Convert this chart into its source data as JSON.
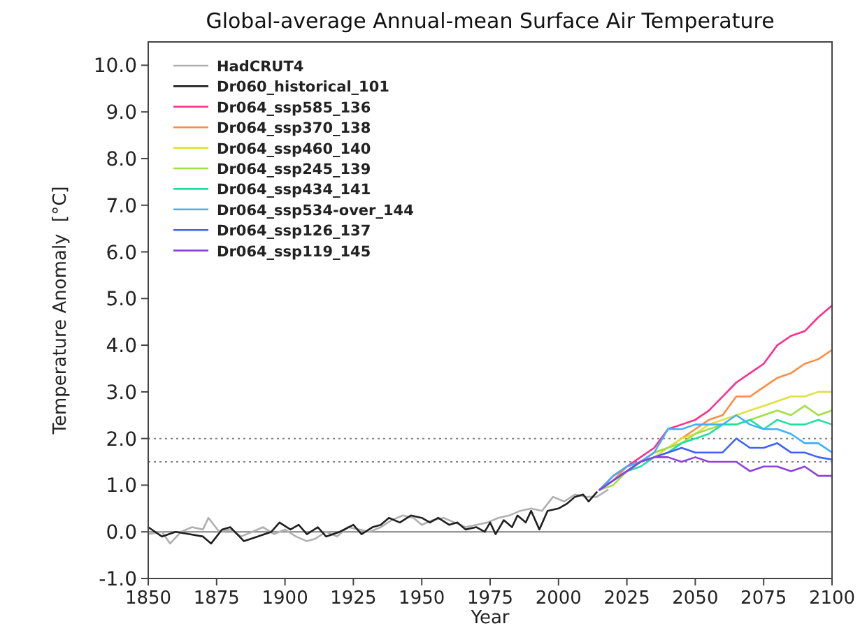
{
  "chart_data": {
    "type": "line",
    "title": "Global-average Annual-mean Surface Air Temperature",
    "xlabel": "Year",
    "ylabel": "Temperature Anomaly  [°C]",
    "xlim": [
      1850,
      2100
    ],
    "xticks": [
      1850,
      1875,
      1900,
      1925,
      1950,
      1975,
      2000,
      2025,
      2050,
      2075,
      2100
    ],
    "ylim": [
      -1,
      10.5
    ],
    "yticks": [
      {
        "value": -1,
        "label": "-1.0"
      },
      {
        "value": 0,
        "label": "0.0"
      },
      {
        "value": 1,
        "label": "1.0"
      },
      {
        "value": 2,
        "label": "2.0"
      },
      {
        "value": 3,
        "label": "3.0"
      },
      {
        "value": 4,
        "label": "4.0"
      },
      {
        "value": 5,
        "label": "5.0"
      },
      {
        "value": 6,
        "label": "6.0"
      },
      {
        "value": 7,
        "label": "7.0"
      },
      {
        "value": 8,
        "label": "8.0"
      },
      {
        "value": 9,
        "label": "9.0"
      },
      {
        "value": 10,
        "label": "10.0"
      }
    ],
    "grid": false,
    "legend": "top left",
    "line_style": "solid",
    "ref_lines": [
      {
        "axis": "y",
        "value": 0,
        "color": "#808080",
        "line_style": "solid"
      },
      {
        "axis": "y",
        "value": 2,
        "color": "#808080",
        "line_style": "dotted"
      },
      {
        "axis": "y",
        "value": 1.5,
        "color": "#808080",
        "line_style": "dotted"
      }
    ],
    "series": [
      {
        "name": "HadCRUT4",
        "color": "#b0b0b0",
        "x": [
          1850,
          1855,
          1858,
          1862,
          1866,
          1870,
          1872,
          1876,
          1880,
          1884,
          1888,
          1892,
          1896,
          1900,
          1904,
          1908,
          1911,
          1915,
          1919,
          1923,
          1927,
          1931,
          1935,
          1939,
          1943,
          1947,
          1950,
          1954,
          1958,
          1962,
          1966,
          1970,
          1974,
          1978,
          1982,
          1986,
          1990,
          1994,
          1998,
          2002,
          2006,
          2010,
          2014,
          2018
        ],
        "values": [
          -0.05,
          0.0,
          -0.25,
          0.0,
          0.1,
          0.05,
          0.3,
          0.0,
          0.05,
          -0.1,
          0.0,
          0.1,
          -0.05,
          0.05,
          -0.1,
          -0.2,
          -0.15,
          0.0,
          -0.1,
          0.1,
          0.05,
          0.0,
          0.1,
          0.25,
          0.35,
          0.3,
          0.15,
          0.25,
          0.3,
          0.2,
          0.1,
          0.15,
          0.2,
          0.3,
          0.35,
          0.45,
          0.5,
          0.45,
          0.75,
          0.65,
          0.8,
          0.75,
          0.75,
          0.9
        ]
      },
      {
        "name": "Dr060_historical_101",
        "color": "#202020",
        "x": [
          1850,
          1855,
          1860,
          1865,
          1870,
          1873,
          1877,
          1880,
          1885,
          1890,
          1895,
          1898,
          1902,
          1905,
          1908,
          1912,
          1915,
          1920,
          1925,
          1928,
          1932,
          1935,
          1938,
          1942,
          1946,
          1950,
          1953,
          1956,
          1960,
          1963,
          1966,
          1970,
          1973,
          1975,
          1977,
          1980,
          1983,
          1985,
          1988,
          1990,
          1993,
          1996,
          2000,
          2003,
          2006,
          2009,
          2011,
          2014
        ],
        "values": [
          0.1,
          -0.1,
          0.0,
          -0.05,
          -0.1,
          -0.25,
          0.05,
          0.1,
          -0.2,
          -0.1,
          0.0,
          0.2,
          0.05,
          0.15,
          -0.05,
          0.1,
          -0.1,
          0.0,
          0.15,
          -0.05,
          0.1,
          0.15,
          0.3,
          0.2,
          0.35,
          0.3,
          0.2,
          0.3,
          0.15,
          0.2,
          0.05,
          0.1,
          0.0,
          0.2,
          -0.05,
          0.25,
          0.1,
          0.35,
          0.2,
          0.45,
          0.05,
          0.45,
          0.5,
          0.6,
          0.75,
          0.8,
          0.65,
          0.85
        ]
      },
      {
        "name": "Dr064_ssp585_136",
        "color": "#ff2d8c",
        "x": [
          2015,
          2020,
          2025,
          2030,
          2035,
          2040,
          2045,
          2050,
          2055,
          2060,
          2065,
          2070,
          2075,
          2080,
          2085,
          2090,
          2095,
          2100
        ],
        "values": [
          0.9,
          1.2,
          1.4,
          1.6,
          1.8,
          2.2,
          2.3,
          2.4,
          2.6,
          2.9,
          3.2,
          3.4,
          3.6,
          4.0,
          4.2,
          4.3,
          4.6,
          4.85
        ]
      },
      {
        "name": "Dr064_ssp370_138",
        "color": "#ff8c40",
        "x": [
          2015,
          2020,
          2025,
          2030,
          2035,
          2040,
          2045,
          2050,
          2055,
          2060,
          2065,
          2070,
          2075,
          2080,
          2085,
          2090,
          2095,
          2100
        ],
        "values": [
          0.9,
          1.1,
          1.4,
          1.5,
          1.7,
          1.8,
          2.0,
          2.2,
          2.4,
          2.5,
          2.9,
          2.9,
          3.1,
          3.3,
          3.4,
          3.6,
          3.7,
          3.9
        ]
      },
      {
        "name": "Dr064_ssp460_140",
        "color": "#e0e040",
        "x": [
          2015,
          2020,
          2025,
          2030,
          2035,
          2040,
          2045,
          2050,
          2055,
          2060,
          2065,
          2070,
          2075,
          2080,
          2085,
          2090,
          2095,
          2100
        ],
        "values": [
          0.9,
          1.1,
          1.3,
          1.5,
          1.6,
          1.8,
          2.0,
          2.1,
          2.3,
          2.4,
          2.5,
          2.6,
          2.7,
          2.8,
          2.9,
          2.9,
          3.0,
          3.0
        ]
      },
      {
        "name": "Dr064_ssp245_139",
        "color": "#a0e040",
        "x": [
          2015,
          2020,
          2025,
          2030,
          2035,
          2040,
          2045,
          2050,
          2055,
          2060,
          2065,
          2070,
          2075,
          2080,
          2085,
          2090,
          2095,
          2100
        ],
        "values": [
          0.9,
          1.0,
          1.3,
          1.5,
          1.7,
          1.8,
          1.9,
          2.1,
          2.2,
          2.3,
          2.3,
          2.4,
          2.5,
          2.6,
          2.5,
          2.7,
          2.5,
          2.6
        ]
      },
      {
        "name": "Dr064_ssp434_141",
        "color": "#20e0a0",
        "x": [
          2015,
          2020,
          2025,
          2030,
          2035,
          2040,
          2045,
          2050,
          2055,
          2060,
          2065,
          2070,
          2075,
          2080,
          2085,
          2090,
          2095,
          2100
        ],
        "values": [
          0.9,
          1.1,
          1.3,
          1.4,
          1.6,
          1.7,
          1.9,
          2.0,
          2.1,
          2.3,
          2.3,
          2.4,
          2.2,
          2.4,
          2.3,
          2.3,
          2.4,
          2.3
        ]
      },
      {
        "name": "Dr064_ssp534-over_144",
        "color": "#40b0ff",
        "x": [
          2015,
          2020,
          2025,
          2030,
          2035,
          2040,
          2045,
          2050,
          2055,
          2060,
          2065,
          2070,
          2075,
          2080,
          2085,
          2090,
          2095,
          2100
        ],
        "values": [
          0.9,
          1.2,
          1.4,
          1.5,
          1.7,
          2.2,
          2.2,
          2.3,
          2.3,
          2.3,
          2.5,
          2.3,
          2.2,
          2.2,
          2.1,
          1.9,
          1.9,
          1.7
        ]
      },
      {
        "name": "Dr064_ssp126_137",
        "color": "#4060ff",
        "x": [
          2015,
          2020,
          2025,
          2030,
          2035,
          2040,
          2045,
          2050,
          2055,
          2060,
          2065,
          2070,
          2075,
          2080,
          2085,
          2090,
          2095,
          2100
        ],
        "values": [
          0.9,
          1.1,
          1.3,
          1.5,
          1.6,
          1.7,
          1.8,
          1.7,
          1.7,
          1.7,
          2.0,
          1.8,
          1.8,
          1.9,
          1.7,
          1.7,
          1.6,
          1.55
        ]
      },
      {
        "name": "Dr064_ssp119_145",
        "color": "#9040e0",
        "x": [
          2015,
          2020,
          2025,
          2030,
          2035,
          2040,
          2045,
          2050,
          2055,
          2060,
          2065,
          2070,
          2075,
          2080,
          2085,
          2090,
          2095,
          2100
        ],
        "values": [
          0.9,
          1.1,
          1.3,
          1.5,
          1.6,
          1.6,
          1.5,
          1.6,
          1.5,
          1.5,
          1.5,
          1.3,
          1.4,
          1.4,
          1.3,
          1.4,
          1.2,
          1.2
        ]
      }
    ]
  }
}
